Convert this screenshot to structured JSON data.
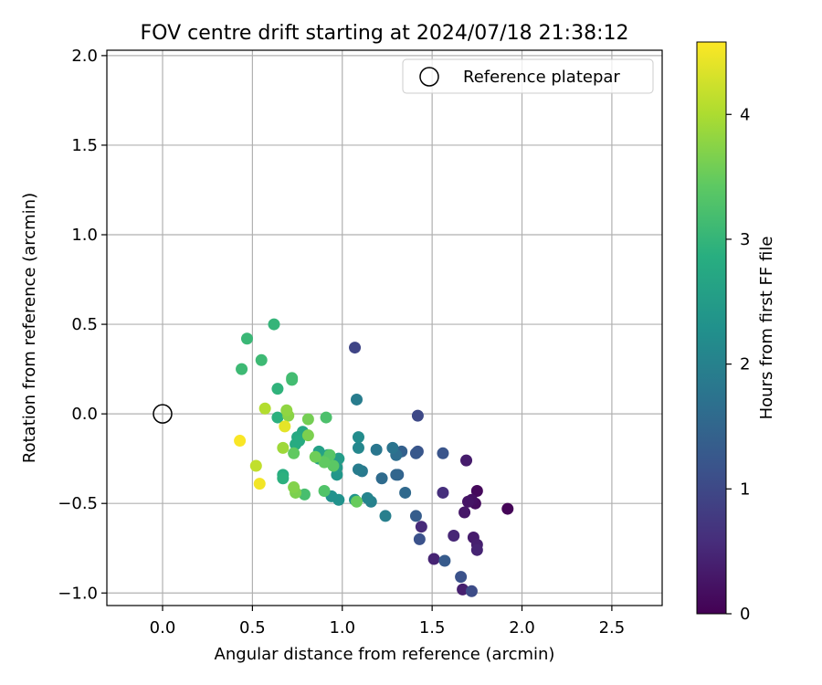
{
  "chart_data": {
    "type": "scatter",
    "title": "FOV centre drift starting at 2024/07/18 21:38:12",
    "xlabel": "Angular distance from reference (arcmin)",
    "ylabel": "Rotation from reference (arcmin)",
    "xlim": [
      -0.31,
      2.78
    ],
    "ylim": [
      -1.07,
      2.03
    ],
    "xticks": [
      0.0,
      0.5,
      1.0,
      1.5,
      2.0,
      2.5
    ],
    "xtick_labels": [
      "0.0",
      "0.5",
      "1.0",
      "1.5",
      "2.0",
      "2.5"
    ],
    "yticks": [
      -1.0,
      -0.5,
      0.0,
      0.5,
      1.0,
      1.5,
      2.0
    ],
    "ytick_labels": [
      "−1.0",
      "−0.5",
      "0.0",
      "0.5",
      "1.0",
      "1.5",
      "2.0"
    ],
    "grid": true,
    "legend": {
      "placement": "top-right",
      "entries": [
        {
          "label": "Reference platepar",
          "marker": "hollow-circle"
        }
      ]
    },
    "reference_point": {
      "x": 0.0,
      "y": 0.0
    },
    "colorbar": {
      "label": "Hours from first FF file",
      "range": [
        0,
        4.58
      ],
      "ticks": [
        0,
        1,
        2,
        3,
        4
      ],
      "tick_labels": [
        "0",
        "1",
        "2",
        "3",
        "4"
      ],
      "colormap": "viridis"
    },
    "points": [
      {
        "x": 1.92,
        "y": -0.53,
        "c": 0.05
      },
      {
        "x": 1.75,
        "y": -0.43,
        "c": 0.1
      },
      {
        "x": 1.74,
        "y": -0.5,
        "c": 0.15
      },
      {
        "x": 1.72,
        "y": -0.48,
        "c": 0.2
      },
      {
        "x": 1.7,
        "y": -0.49,
        "c": 0.25
      },
      {
        "x": 1.68,
        "y": -0.55,
        "c": 0.3
      },
      {
        "x": 1.69,
        "y": -0.26,
        "c": 0.35
      },
      {
        "x": 1.73,
        "y": -0.69,
        "c": 0.35
      },
      {
        "x": 1.75,
        "y": -0.73,
        "c": 0.4
      },
      {
        "x": 1.75,
        "y": -0.76,
        "c": 0.45
      },
      {
        "x": 1.62,
        "y": -0.68,
        "c": 0.5
      },
      {
        "x": 1.67,
        "y": -0.98,
        "c": 0.4
      },
      {
        "x": 1.51,
        "y": -0.81,
        "c": 0.45
      },
      {
        "x": 1.44,
        "y": -0.63,
        "c": 0.55
      },
      {
        "x": 1.56,
        "y": -0.44,
        "c": 0.6
      },
      {
        "x": 1.07,
        "y": 0.37,
        "c": 0.95
      },
      {
        "x": 1.42,
        "y": -0.01,
        "c": 1.0
      },
      {
        "x": 1.72,
        "y": -0.99,
        "c": 1.05
      },
      {
        "x": 1.66,
        "y": -0.91,
        "c": 1.15
      },
      {
        "x": 1.43,
        "y": -0.7,
        "c": 1.15
      },
      {
        "x": 1.56,
        "y": -0.22,
        "c": 1.2
      },
      {
        "x": 1.42,
        "y": -0.21,
        "c": 1.2
      },
      {
        "x": 1.41,
        "y": -0.22,
        "c": 1.25
      },
      {
        "x": 1.57,
        "y": -0.82,
        "c": 1.3
      },
      {
        "x": 1.41,
        "y": -0.57,
        "c": 1.35
      },
      {
        "x": 1.33,
        "y": -0.21,
        "c": 1.4
      },
      {
        "x": 1.31,
        "y": -0.34,
        "c": 1.45
      },
      {
        "x": 1.3,
        "y": -0.34,
        "c": 1.5
      },
      {
        "x": 1.35,
        "y": -0.44,
        "c": 1.55
      },
      {
        "x": 1.22,
        "y": -0.36,
        "c": 1.6
      },
      {
        "x": 1.3,
        "y": -0.23,
        "c": 1.65
      },
      {
        "x": 1.28,
        "y": -0.19,
        "c": 1.75
      },
      {
        "x": 1.19,
        "y": -0.2,
        "c": 1.8
      },
      {
        "x": 1.11,
        "y": -0.32,
        "c": 1.85
      },
      {
        "x": 1.09,
        "y": -0.31,
        "c": 1.9
      },
      {
        "x": 1.08,
        "y": 0.08,
        "c": 1.9
      },
      {
        "x": 1.24,
        "y": -0.57,
        "c": 1.95
      },
      {
        "x": 1.16,
        "y": -0.49,
        "c": 2.0
      },
      {
        "x": 1.14,
        "y": -0.47,
        "c": 2.05
      },
      {
        "x": 1.09,
        "y": -0.19,
        "c": 2.1
      },
      {
        "x": 1.09,
        "y": -0.13,
        "c": 2.2
      },
      {
        "x": 0.98,
        "y": -0.48,
        "c": 2.3
      },
      {
        "x": 0.94,
        "y": -0.46,
        "c": 2.3
      },
      {
        "x": 1.07,
        "y": -0.48,
        "c": 2.35
      },
      {
        "x": 0.97,
        "y": -0.34,
        "c": 2.4
      },
      {
        "x": 0.97,
        "y": -0.3,
        "c": 2.45
      },
      {
        "x": 0.98,
        "y": -0.25,
        "c": 2.5
      },
      {
        "x": 0.92,
        "y": -0.23,
        "c": 2.55
      },
      {
        "x": 0.87,
        "y": -0.21,
        "c": 2.6
      },
      {
        "x": 0.87,
        "y": -0.25,
        "c": 2.65
      },
      {
        "x": 0.78,
        "y": -0.1,
        "c": 2.7
      },
      {
        "x": 0.75,
        "y": -0.13,
        "c": 2.75
      },
      {
        "x": 0.74,
        "y": -0.17,
        "c": 2.8
      },
      {
        "x": 0.76,
        "y": -0.15,
        "c": 2.8
      },
      {
        "x": 0.67,
        "y": -0.34,
        "c": 2.85
      },
      {
        "x": 0.67,
        "y": -0.36,
        "c": 2.9
      },
      {
        "x": 0.64,
        "y": -0.02,
        "c": 2.9
      },
      {
        "x": 0.64,
        "y": 0.14,
        "c": 2.95
      },
      {
        "x": 0.62,
        "y": 0.5,
        "c": 3.0
      },
      {
        "x": 0.47,
        "y": 0.42,
        "c": 3.05
      },
      {
        "x": 0.44,
        "y": 0.25,
        "c": 3.1
      },
      {
        "x": 0.55,
        "y": 0.3,
        "c": 3.1
      },
      {
        "x": 0.72,
        "y": 0.19,
        "c": 3.15
      },
      {
        "x": 0.72,
        "y": 0.2,
        "c": 3.15
      },
      {
        "x": 0.79,
        "y": -0.45,
        "c": 3.2
      },
      {
        "x": 0.91,
        "y": -0.02,
        "c": 3.25
      },
      {
        "x": 0.9,
        "y": -0.43,
        "c": 3.3
      },
      {
        "x": 0.91,
        "y": -0.26,
        "c": 3.35
      },
      {
        "x": 0.93,
        "y": -0.23,
        "c": 3.35
      },
      {
        "x": 0.95,
        "y": -0.29,
        "c": 3.4
      },
      {
        "x": 0.9,
        "y": -0.27,
        "c": 3.45
      },
      {
        "x": 0.73,
        "y": -0.22,
        "c": 3.45
      },
      {
        "x": 1.08,
        "y": -0.49,
        "c": 3.5
      },
      {
        "x": 0.85,
        "y": -0.24,
        "c": 3.55
      },
      {
        "x": 0.81,
        "y": -0.03,
        "c": 3.6
      },
      {
        "x": 0.81,
        "y": -0.12,
        "c": 3.65
      },
      {
        "x": 0.74,
        "y": -0.44,
        "c": 3.65
      },
      {
        "x": 0.73,
        "y": -0.41,
        "c": 3.7
      },
      {
        "x": 0.7,
        "y": -0.01,
        "c": 3.75
      },
      {
        "x": 0.69,
        "y": 0.02,
        "c": 3.8
      },
      {
        "x": 0.67,
        "y": -0.19,
        "c": 3.9
      },
      {
        "x": 0.57,
        "y": 0.03,
        "c": 4.05
      },
      {
        "x": 0.52,
        "y": -0.29,
        "c": 4.15
      },
      {
        "x": 0.68,
        "y": -0.07,
        "c": 4.4
      },
      {
        "x": 0.54,
        "y": -0.39,
        "c": 4.5
      },
      {
        "x": 0.43,
        "y": -0.15,
        "c": 4.55
      }
    ]
  }
}
